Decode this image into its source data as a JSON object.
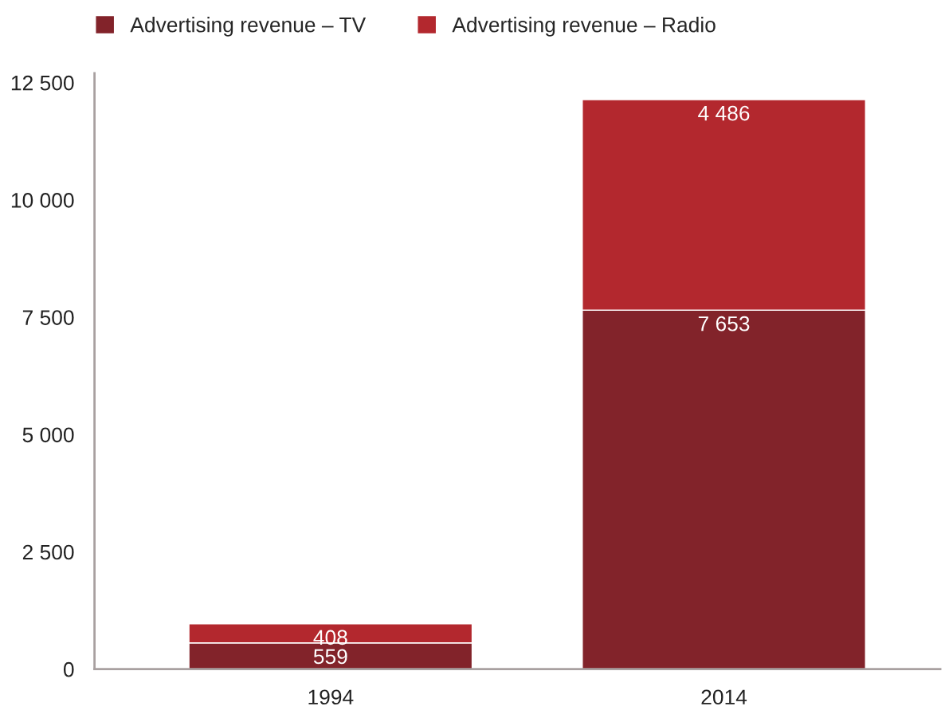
{
  "chart_data": {
    "type": "bar",
    "stacked": true,
    "categories": [
      "1994",
      "2014"
    ],
    "series": [
      {
        "name": "Advertising revenue – TV",
        "color": "#82232a",
        "values": [
          559,
          7653
        ],
        "value_labels": [
          "559",
          "7 653"
        ]
      },
      {
        "name": "Advertising revenue – Radio",
        "color": "#b3282e",
        "values": [
          408,
          4486
        ],
        "value_labels": [
          "408",
          "4 486"
        ]
      }
    ],
    "ylim": [
      0,
      12700
    ],
    "yticks": [
      0,
      {
        "value": 2500,
        "label": "2 500"
      },
      {
        "value": 5000,
        "label": "5 000"
      },
      {
        "value": 7500,
        "label": "7 500"
      },
      {
        "value": 10000,
        "label": "10 000"
      },
      {
        "value": 12500,
        "label": "12 500"
      }
    ],
    "grid": false,
    "legend": "top left"
  }
}
